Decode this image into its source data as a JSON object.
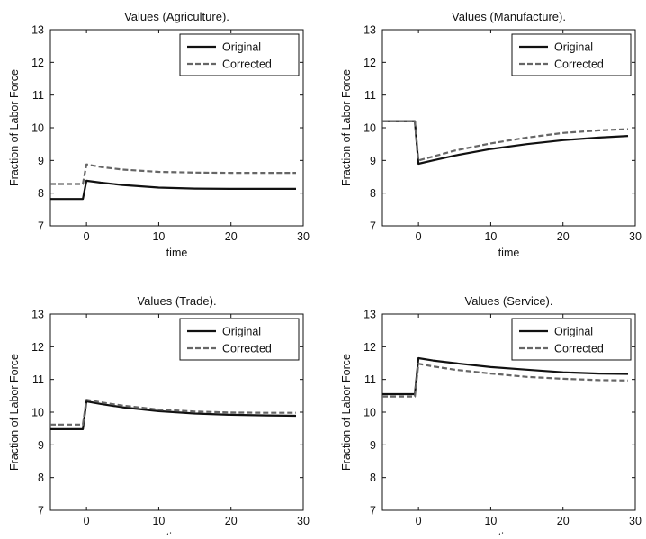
{
  "chart_data": [
    {
      "type": "line",
      "title": "Values (Agriculture).",
      "xlabel": "time",
      "ylabel": "Fraction of Labor Force",
      "xlim": [
        -5,
        30
      ],
      "ylim": [
        7,
        13
      ],
      "xticks": [
        "0",
        "10",
        "20",
        "30"
      ],
      "yticks": [
        "7",
        "8",
        "9",
        "10",
        "11",
        "12",
        "13"
      ],
      "legend_position": "top-right",
      "series": [
        {
          "name": "Original",
          "color": "#111111",
          "style": "solid",
          "x": [
            -5,
            -0.5,
            0,
            2,
            5,
            10,
            15,
            20,
            25,
            29
          ],
          "y": [
            7.82,
            7.82,
            8.38,
            8.32,
            8.25,
            8.17,
            8.14,
            8.13,
            8.13,
            8.13
          ]
        },
        {
          "name": "Corrected",
          "color": "#666666",
          "style": "dashed",
          "x": [
            -5,
            -0.5,
            0,
            2,
            5,
            10,
            15,
            20,
            25,
            29
          ],
          "y": [
            8.28,
            8.28,
            8.88,
            8.8,
            8.72,
            8.65,
            8.63,
            8.62,
            8.62,
            8.62
          ]
        }
      ]
    },
    {
      "type": "line",
      "title": "Values (Manufacture).",
      "xlabel": "time",
      "ylabel": "Fraction of Labor Force",
      "xlim": [
        -5,
        30
      ],
      "ylim": [
        7,
        13
      ],
      "xticks": [
        "0",
        "10",
        "20",
        "30"
      ],
      "yticks": [
        "7",
        "8",
        "9",
        "10",
        "11",
        "12",
        "13"
      ],
      "legend_position": "top-right",
      "series": [
        {
          "name": "Original",
          "color": "#111111",
          "style": "solid",
          "x": [
            -5,
            -0.5,
            0,
            2,
            5,
            10,
            15,
            20,
            25,
            29
          ],
          "y": [
            10.2,
            10.2,
            8.9,
            9.0,
            9.15,
            9.35,
            9.5,
            9.62,
            9.7,
            9.75
          ]
        },
        {
          "name": "Corrected",
          "color": "#666666",
          "style": "dashed",
          "x": [
            -5,
            -0.5,
            0,
            2,
            5,
            10,
            15,
            20,
            25,
            29
          ],
          "y": [
            10.2,
            10.2,
            9.0,
            9.12,
            9.3,
            9.52,
            9.7,
            9.84,
            9.92,
            9.96
          ]
        }
      ]
    },
    {
      "type": "line",
      "title": "Values (Trade).",
      "xlabel": "time",
      "ylabel": "Fraction of Labor Force",
      "xlim": [
        -5,
        30
      ],
      "ylim": [
        7,
        13
      ],
      "xticks": [
        "0",
        "10",
        "20",
        "30"
      ],
      "yticks": [
        "7",
        "8",
        "9",
        "10",
        "11",
        "12",
        "13"
      ],
      "legend_position": "top-right",
      "series": [
        {
          "name": "Original",
          "color": "#111111",
          "style": "solid",
          "x": [
            -5,
            -0.5,
            0,
            2,
            5,
            10,
            15,
            20,
            25,
            29
          ],
          "y": [
            9.48,
            9.48,
            10.33,
            10.25,
            10.15,
            10.03,
            9.96,
            9.92,
            9.9,
            9.89
          ]
        },
        {
          "name": "Corrected",
          "color": "#666666",
          "style": "dashed",
          "x": [
            -5,
            -0.5,
            0,
            2,
            5,
            10,
            15,
            20,
            25,
            29
          ],
          "y": [
            9.62,
            9.62,
            10.38,
            10.3,
            10.2,
            10.08,
            10.02,
            9.99,
            9.98,
            9.98
          ]
        }
      ]
    },
    {
      "type": "line",
      "title": "Values (Service).",
      "xlabel": "time",
      "ylabel": "Fraction of Labor Force",
      "xlim": [
        -5,
        30
      ],
      "ylim": [
        7,
        13
      ],
      "xticks": [
        "0",
        "10",
        "20",
        "30"
      ],
      "yticks": [
        "7",
        "8",
        "9",
        "10",
        "11",
        "12",
        "13"
      ],
      "legend_position": "top-right",
      "series": [
        {
          "name": "Original",
          "color": "#111111",
          "style": "solid",
          "x": [
            -5,
            -0.5,
            0,
            2,
            5,
            10,
            15,
            20,
            25,
            29
          ],
          "y": [
            10.55,
            10.55,
            11.65,
            11.58,
            11.5,
            11.38,
            11.3,
            11.22,
            11.18,
            11.17
          ]
        },
        {
          "name": "Corrected",
          "color": "#666666",
          "style": "dashed",
          "x": [
            -5,
            -0.5,
            0,
            2,
            5,
            10,
            15,
            20,
            25,
            29
          ],
          "y": [
            10.48,
            10.48,
            11.48,
            11.4,
            11.3,
            11.18,
            11.08,
            11.02,
            10.98,
            10.97
          ]
        }
      ]
    }
  ]
}
